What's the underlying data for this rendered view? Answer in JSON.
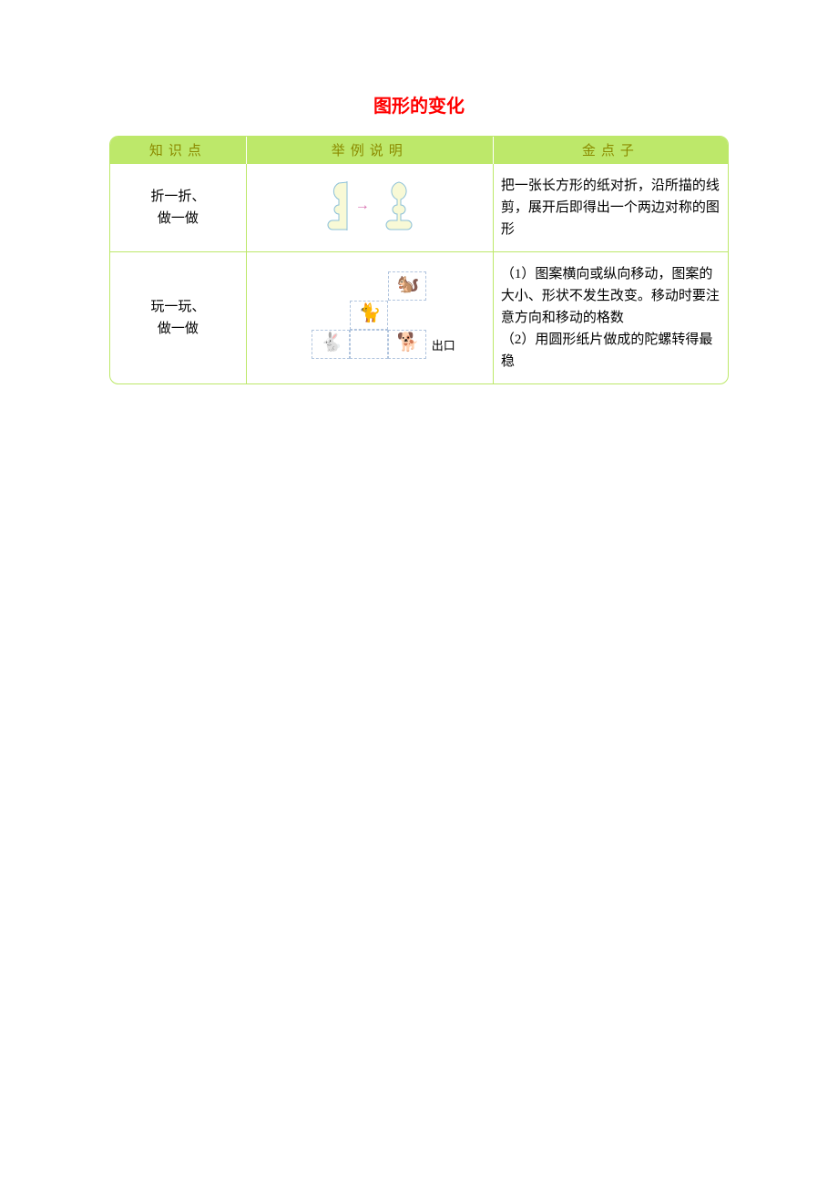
{
  "title": "图形的变化",
  "headers": {
    "col1": "知识点",
    "col2": "举例说明",
    "col3": "金点子"
  },
  "rows": [
    {
      "knowledge": "折一折、\n做一做",
      "tip": "把一张长方形的纸对折，沿所描的线剪，展开后即得出一个两边对称的图形",
      "illustration": {
        "type": "fold-symmetry",
        "shape_fill": "#f8f9d6",
        "shape_stroke": "#8cc0d8",
        "fold_line_color": "#8cc0d8",
        "arrow_color": "#d86fb0"
      }
    },
    {
      "knowledge": "玩一玩、\n做一做",
      "tip": "（1）图案横向或纵向移动，图案的大小、形状不发生改变。移动时要注意方向和移动的格数\n（2）用圆形纸片做成的陀螺转得最稳",
      "illustration": {
        "type": "animal-grid",
        "grid_color": "#b0c4de",
        "exit_label": "出口",
        "cells": [
          {
            "row": 0,
            "col": 2
          },
          {
            "row": 1,
            "col": 1
          },
          {
            "row": 2,
            "col": 0
          },
          {
            "row": 2,
            "col": 1
          },
          {
            "row": 2,
            "col": 2
          }
        ],
        "animals": [
          {
            "glyph": "🐿️",
            "row": 0,
            "col": 2,
            "color": "#b5651d"
          },
          {
            "glyph": "🐈",
            "row": 1,
            "col": 1,
            "color": "#d2691e"
          },
          {
            "glyph": "🐇",
            "row": 2,
            "col": 0,
            "color": "#e9a0a0"
          },
          {
            "glyph": "🐕",
            "row": 2,
            "col": 2,
            "color": "#cd853f"
          }
        ]
      }
    }
  ],
  "colors": {
    "title": "#ff0000",
    "header_bg": "#bde86a",
    "header_text": "#8b8b00",
    "border": "#bde86a",
    "background": "#ffffff"
  }
}
